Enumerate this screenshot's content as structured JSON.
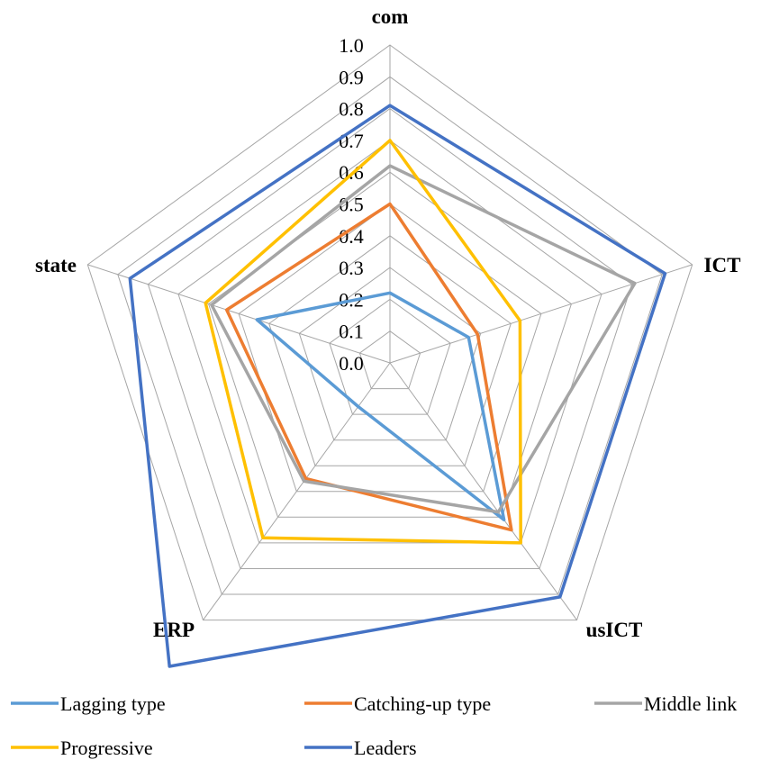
{
  "chart_data": {
    "type": "radar",
    "axes": [
      "com",
      "ICT",
      "usICT",
      "ERP",
      "state"
    ],
    "rlim": [
      0,
      1.0
    ],
    "ticks": [
      "0.0",
      "0.1",
      "0.2",
      "0.3",
      "0.4",
      "0.5",
      "0.6",
      "0.7",
      "0.8",
      "0.9",
      "1.0"
    ],
    "grid": true,
    "legend_position": "bottom",
    "series": [
      {
        "name": "Lagging type",
        "color": "#5B9BD5",
        "values": [
          0.22,
          0.26,
          0.61,
          0.17,
          0.44
        ]
      },
      {
        "name": "Catching-up type",
        "color": "#ED7D31",
        "values": [
          0.5,
          0.29,
          0.65,
          0.45,
          0.54
        ]
      },
      {
        "name": "Middle link",
        "color": "#A5A5A5",
        "values": [
          0.62,
          0.81,
          0.58,
          0.46,
          0.59
        ]
      },
      {
        "name": "Progressive",
        "color": "#FFC000",
        "values": [
          0.7,
          0.43,
          0.7,
          0.68,
          0.61
        ]
      },
      {
        "name": "Leaders",
        "color": "#4472C4",
        "values": [
          0.81,
          0.91,
          0.91,
          1.18,
          0.86
        ]
      }
    ]
  }
}
